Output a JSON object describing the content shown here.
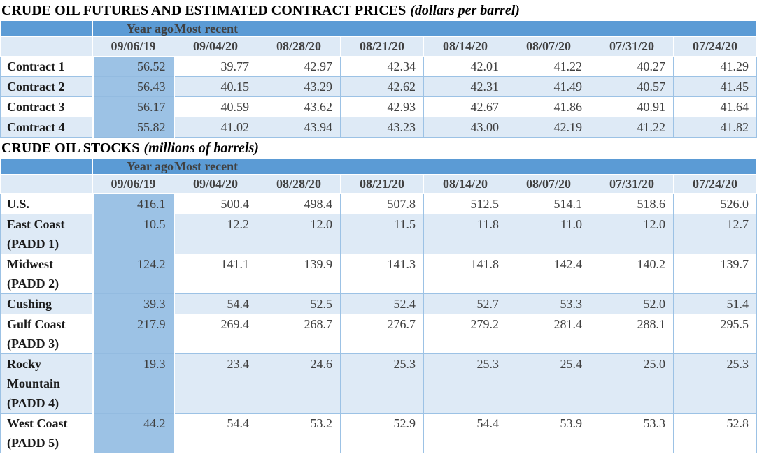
{
  "colors": {
    "band_blue": "#5b9bd5",
    "year_ago_blue": "#9cc2e5",
    "light_row_blue": "#deeaf6",
    "grid_line": "#9cc2e5",
    "header_text": "#404040",
    "value_text": "#404040",
    "label_text": "#1a1a1a",
    "title_text": "#000000"
  },
  "column_headers": {
    "year_ago_label": "Year ago",
    "most_recent_label": "Most recent",
    "year_ago_date": "09/06/19",
    "recent_dates": [
      "09/04/20",
      "08/28/20",
      "08/21/20",
      "08/14/20",
      "08/07/20",
      "07/31/20",
      "07/24/20"
    ]
  },
  "tables": [
    {
      "title": "CRUDE OIL FUTURES AND ESTIMATED CONTRACT PRICES",
      "unit": "(dollars per barrel)",
      "rows": [
        {
          "label": "Contract 1",
          "year_ago": "56.52",
          "values": [
            "39.77",
            "42.97",
            "42.34",
            "42.01",
            "41.22",
            "40.27",
            "41.29"
          ]
        },
        {
          "label": "Contract 2",
          "year_ago": "56.43",
          "values": [
            "40.15",
            "43.29",
            "42.62",
            "42.31",
            "41.49",
            "40.57",
            "41.45"
          ]
        },
        {
          "label": "Contract 3",
          "year_ago": "56.17",
          "values": [
            "40.59",
            "43.62",
            "42.93",
            "42.67",
            "41.86",
            "40.91",
            "41.64"
          ]
        },
        {
          "label": "Contract 4",
          "year_ago": "55.82",
          "values": [
            "41.02",
            "43.94",
            "43.23",
            "43.00",
            "42.19",
            "41.22",
            "41.82"
          ]
        }
      ]
    },
    {
      "title": "CRUDE OIL STOCKS",
      "unit": "(millions of barrels)",
      "rows": [
        {
          "label": "U.S.",
          "year_ago": "416.1",
          "values": [
            "500.4",
            "498.4",
            "507.8",
            "512.5",
            "514.1",
            "518.6",
            "526.0"
          ]
        },
        {
          "label": "East Coast (PADD 1)",
          "year_ago": "10.5",
          "values": [
            "12.2",
            "12.0",
            "11.5",
            "11.8",
            "11.0",
            "12.0",
            "12.7"
          ]
        },
        {
          "label": "Midwest (PADD 2)",
          "year_ago": "124.2",
          "values": [
            "141.1",
            "139.9",
            "141.3",
            "141.8",
            "142.4",
            "140.2",
            "139.7"
          ]
        },
        {
          "label": "Cushing",
          "year_ago": "39.3",
          "values": [
            "54.4",
            "52.5",
            "52.4",
            "52.7",
            "53.3",
            "52.0",
            "51.4"
          ]
        },
        {
          "label": "Gulf Coast (PADD 3)",
          "year_ago": "217.9",
          "values": [
            "269.4",
            "268.7",
            "276.7",
            "279.2",
            "281.4",
            "288.1",
            "295.5"
          ]
        },
        {
          "label": "Rocky Mountain (PADD 4)",
          "year_ago": "19.3",
          "values": [
            "23.4",
            "24.6",
            "25.3",
            "25.3",
            "25.4",
            "25.0",
            "25.3"
          ]
        },
        {
          "label": "West Coast (PADD 5)",
          "year_ago": "44.2",
          "values": [
            "54.4",
            "53.2",
            "52.9",
            "54.4",
            "53.9",
            "53.3",
            "52.8"
          ]
        }
      ]
    }
  ]
}
